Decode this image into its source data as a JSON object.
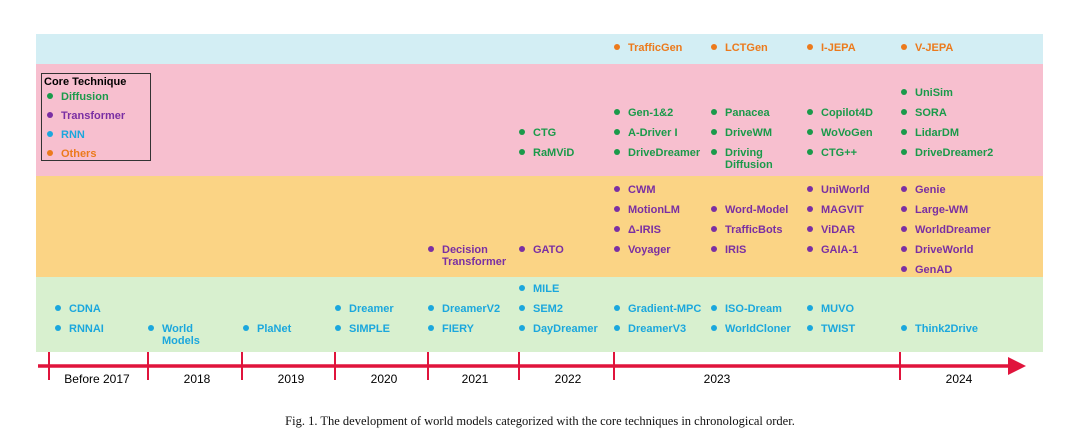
{
  "colors": {
    "diffusion": "#1a9a4a",
    "transformer": "#7a2fa3",
    "rnn": "#1ba7dd",
    "others": "#ec7a1c"
  },
  "legend": {
    "title": "Core Technique",
    "entries": [
      {
        "label": "Diffusion",
        "technique": "diffusion"
      },
      {
        "label": "Transformer",
        "technique": "transformer"
      },
      {
        "label": "RNN",
        "technique": "rnn"
      },
      {
        "label": "Others",
        "technique": "others"
      }
    ]
  },
  "years": [
    "Before 2017",
    "2018",
    "2019",
    "2020",
    "2021",
    "2022",
    "2023",
    "2024"
  ],
  "caption": "Fig. 1.  The development of world models categorized with the core techniques in chronological order.",
  "models": [
    {
      "name": "TrafficGen",
      "technique": "others",
      "year": "2023"
    },
    {
      "name": "LCTGen",
      "technique": "others",
      "year": "2023"
    },
    {
      "name": "I-JEPA",
      "technique": "others",
      "year": "2023"
    },
    {
      "name": "V-JEPA",
      "technique": "others",
      "year": "2024"
    },
    {
      "name": "CTG",
      "technique": "diffusion",
      "year": "2022"
    },
    {
      "name": "RaMViD",
      "technique": "diffusion",
      "year": "2022"
    },
    {
      "name": "Gen-1&2",
      "technique": "diffusion",
      "year": "2023"
    },
    {
      "name": "A-Driver I",
      "technique": "diffusion",
      "year": "2023"
    },
    {
      "name": "DriveDreamer",
      "technique": "diffusion",
      "year": "2023"
    },
    {
      "name": "Panacea",
      "technique": "diffusion",
      "year": "2023"
    },
    {
      "name": "DriveWM",
      "technique": "diffusion",
      "year": "2023"
    },
    {
      "name": "Driving\nDiffusion",
      "technique": "diffusion",
      "year": "2023"
    },
    {
      "name": "Copilot4D",
      "technique": "diffusion",
      "year": "2023"
    },
    {
      "name": "WoVoGen",
      "technique": "diffusion",
      "year": "2023"
    },
    {
      "name": "CTG++",
      "technique": "diffusion",
      "year": "2023"
    },
    {
      "name": "UniSim",
      "technique": "diffusion",
      "year": "2024"
    },
    {
      "name": "SORA",
      "technique": "diffusion",
      "year": "2024"
    },
    {
      "name": "LidarDM",
      "technique": "diffusion",
      "year": "2024"
    },
    {
      "name": "DriveDreamer2",
      "technique": "diffusion",
      "year": "2024"
    },
    {
      "name": "Decision\nTransformer",
      "technique": "transformer",
      "year": "2021"
    },
    {
      "name": "GATO",
      "technique": "transformer",
      "year": "2022"
    },
    {
      "name": "CWM",
      "technique": "transformer",
      "year": "2023"
    },
    {
      "name": "MotionLM",
      "technique": "transformer",
      "year": "2023"
    },
    {
      "name": "Δ-IRIS",
      "technique": "transformer",
      "year": "2023"
    },
    {
      "name": "Voyager",
      "technique": "transformer",
      "year": "2023"
    },
    {
      "name": "Word-Model",
      "technique": "transformer",
      "year": "2023"
    },
    {
      "name": "TrafficBots",
      "technique": "transformer",
      "year": "2023"
    },
    {
      "name": "IRIS",
      "technique": "transformer",
      "year": "2023"
    },
    {
      "name": "UniWorld",
      "technique": "transformer",
      "year": "2023"
    },
    {
      "name": "MAGVIT",
      "technique": "transformer",
      "year": "2023"
    },
    {
      "name": "ViDAR",
      "technique": "transformer",
      "year": "2023"
    },
    {
      "name": "GAIA-1",
      "technique": "transformer",
      "year": "2023"
    },
    {
      "name": "Genie",
      "technique": "transformer",
      "year": "2024"
    },
    {
      "name": "Large-WM",
      "technique": "transformer",
      "year": "2024"
    },
    {
      "name": "WorldDreamer",
      "technique": "transformer",
      "year": "2024"
    },
    {
      "name": "DriveWorld",
      "technique": "transformer",
      "year": "2024"
    },
    {
      "name": "GenAD",
      "technique": "transformer",
      "year": "2024"
    },
    {
      "name": "CDNA",
      "technique": "rnn",
      "year": "Before 2017"
    },
    {
      "name": "RNNAI",
      "technique": "rnn",
      "year": "Before 2017"
    },
    {
      "name": "World\nModels",
      "technique": "rnn",
      "year": "2018"
    },
    {
      "name": "PlaNet",
      "technique": "rnn",
      "year": "2019"
    },
    {
      "name": "Dreamer",
      "technique": "rnn",
      "year": "2020"
    },
    {
      "name": "SIMPLE",
      "technique": "rnn",
      "year": "2020"
    },
    {
      "name": "DreamerV2",
      "technique": "rnn",
      "year": "2021"
    },
    {
      "name": "FIERY",
      "technique": "rnn",
      "year": "2021"
    },
    {
      "name": "MILE",
      "technique": "rnn",
      "year": "2022"
    },
    {
      "name": "SEM2",
      "technique": "rnn",
      "year": "2022"
    },
    {
      "name": "DayDreamer",
      "technique": "rnn",
      "year": "2022"
    },
    {
      "name": "Gradient-MPC",
      "technique": "rnn",
      "year": "2023"
    },
    {
      "name": "DreamerV3",
      "technique": "rnn",
      "year": "2023"
    },
    {
      "name": "ISO-Dream",
      "technique": "rnn",
      "year": "2023"
    },
    {
      "name": "WorldCloner",
      "technique": "rnn",
      "year": "2023"
    },
    {
      "name": "MUVO",
      "technique": "rnn",
      "year": "2023"
    },
    {
      "name": "TWIST",
      "technique": "rnn",
      "year": "2023"
    },
    {
      "name": "Think2Drive",
      "technique": "rnn",
      "year": "2024"
    }
  ]
}
